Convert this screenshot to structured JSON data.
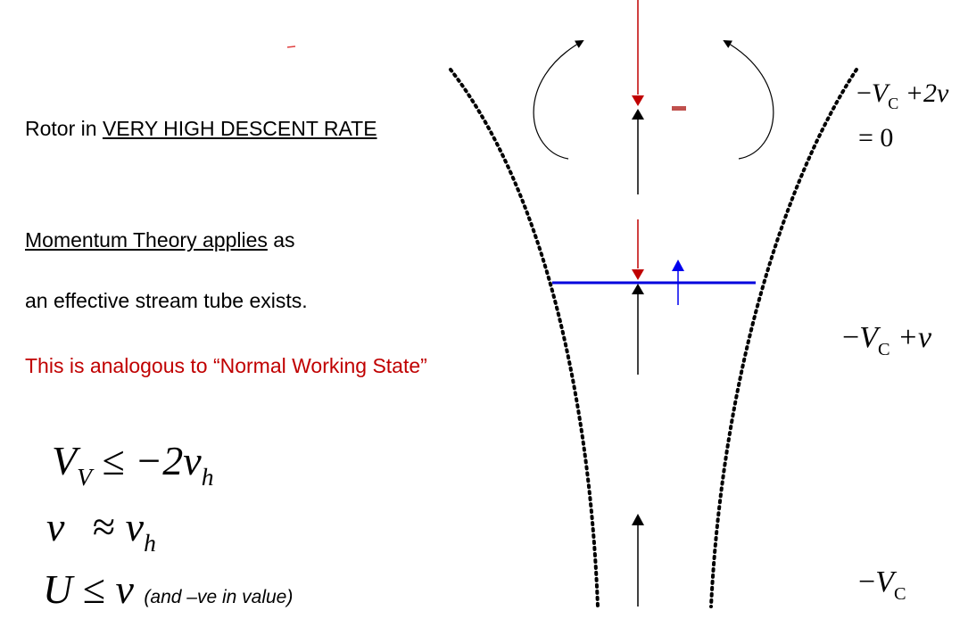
{
  "left_text": {
    "line1_prefix": "Rotor in ",
    "line1_underlined": "VERY HIGH DESCENT RATE",
    "line2_underlined": "Momentum Theory applies",
    "line2_suffix": " as",
    "line3": "an effective stream tube exists.",
    "line4": "This is analogous to “Normal Working State”"
  },
  "equations": {
    "eq1": {
      "lhs": "V",
      "lhs_sub": "V",
      "op": "≤",
      "rhs": "−2v",
      "rhs_sub": "h"
    },
    "eq2": {
      "lhs": "v",
      "op": "≈",
      "rhs": "v",
      "rhs_sub": "h"
    },
    "eq3": {
      "lhs": "U",
      "op": "≤",
      "rhs": "v",
      "note": "(and –ve in value)"
    }
  },
  "labels": {
    "top_line1_minus": "−",
    "top_line1_var": "V",
    "top_line1_sub": "C",
    "top_line1_rest": "+2v",
    "top_line2": "= 0",
    "mid_minus": "−",
    "mid_var": "V",
    "mid_sub": "C",
    "mid_rest": "+v",
    "bottom_minus": "−",
    "bottom_var": "V",
    "bottom_sub": "C"
  },
  "colors": {
    "rotor": "#0000dd",
    "induced_arrow": "#c00000",
    "accent_red": "#c00000",
    "minus_mark": "#c0504d",
    "up_arrow_blue": "#0000ee"
  }
}
